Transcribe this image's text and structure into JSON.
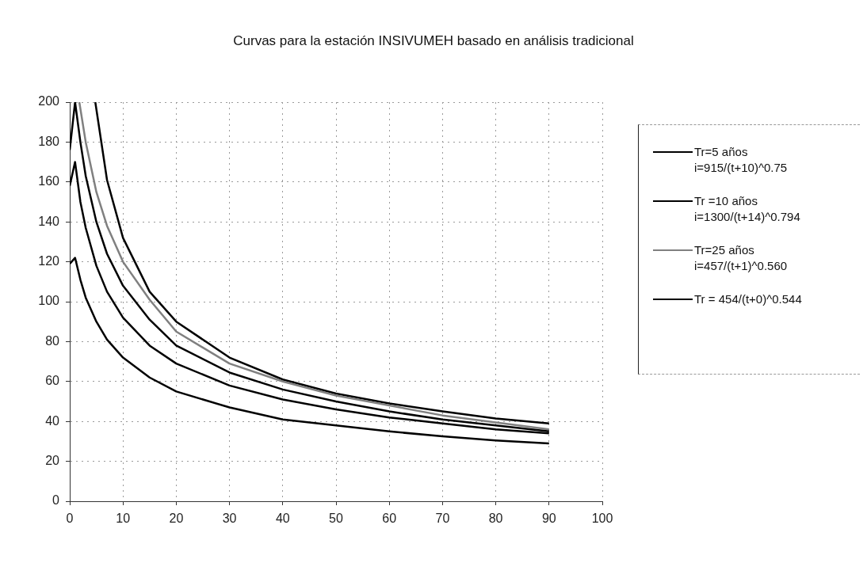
{
  "chart_data": {
    "type": "line",
    "title": "Curvas para la estación INSIVUMEH basado en análisis tradicional",
    "xlim": [
      0,
      100
    ],
    "xticks": [
      0,
      10,
      20,
      30,
      40,
      50,
      60,
      70,
      80,
      90,
      100
    ],
    "ylim": [
      0,
      200
    ],
    "yticks": [
      0,
      20,
      40,
      60,
      80,
      100,
      120,
      140,
      160,
      180,
      200
    ],
    "grid": true,
    "legend": "right",
    "marker": "none",
    "line_style": "solid",
    "series": [
      {
        "name": "Tr=5 años\ni=915/(t+10)^0.75",
        "color": "#000000",
        "x": [
          0,
          1,
          2,
          3,
          5,
          7,
          10,
          15,
          20,
          30,
          40,
          50,
          60,
          70,
          80,
          90
        ],
        "values": [
          119,
          122,
          111,
          102,
          90,
          81,
          72,
          62,
          55,
          47,
          41,
          38,
          35,
          32.5,
          30.5,
          29
        ]
      },
      {
        "name": "Tr =10 años\ni=1300/(t+14)^0.794",
        "color": "#000000",
        "x": [
          0,
          1,
          2,
          3,
          5,
          7,
          10,
          15,
          20,
          30,
          40,
          50,
          60,
          70,
          80,
          90
        ],
        "values": [
          158,
          170,
          150,
          137,
          118,
          105,
          92,
          78,
          69,
          58,
          51,
          46,
          42,
          39,
          36,
          34
        ]
      },
      {
        "color": "#000000",
        "x": [
          0,
          1,
          2,
          3,
          5,
          7,
          10,
          15,
          20,
          30,
          40,
          50,
          60,
          70,
          80,
          90
        ],
        "values": [
          176,
          200,
          180,
          163,
          140,
          124,
          108,
          91,
          78,
          64.5,
          56,
          50,
          45,
          41,
          38,
          35
        ]
      },
      {
        "name": "Tr=25 años\ni=457/(t+1)^0.560",
        "color": "#808080",
        "x": [
          1.8,
          3,
          5,
          7,
          10,
          15,
          20,
          30,
          40,
          50,
          60,
          70,
          80,
          90
        ],
        "values": [
          200,
          180,
          155,
          138,
          120,
          101,
          85,
          69,
          60,
          53,
          48,
          43,
          39.5,
          36
        ]
      },
      {
        "name": "Tr = 454/(t+0)^0.544",
        "color": "#000000",
        "x": [
          4.8,
          7,
          10,
          15,
          20,
          30,
          40,
          50,
          60,
          70,
          80,
          90
        ],
        "values": [
          200,
          161,
          132,
          105,
          90,
          72,
          61,
          54,
          49,
          45,
          41.5,
          39
        ]
      }
    ]
  }
}
